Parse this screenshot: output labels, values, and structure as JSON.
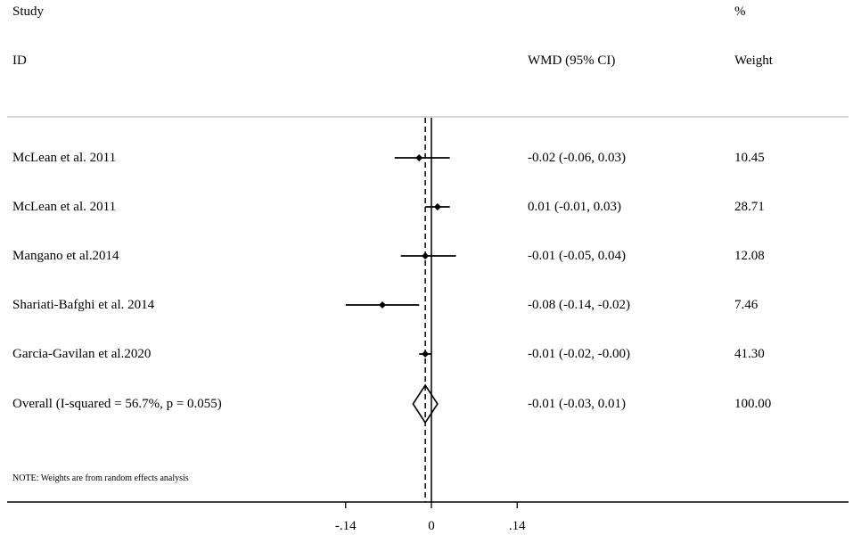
{
  "header": {
    "study_label": "Study",
    "id_label": "ID",
    "effect_label": "WMD (95% CI)",
    "pct_label": "%",
    "weight_label": "Weight"
  },
  "note": "NOTE: Weights are from random effects analysis",
  "chart_data": {
    "type": "forest",
    "effect_measure": "WMD (95% CI)",
    "null_line": 0,
    "pooled_line": -0.01,
    "xlim": [
      -0.14,
      0.14
    ],
    "xticks": [
      -0.14,
      0,
      0.14
    ],
    "xtick_labels": [
      "-.14",
      "0",
      ".14"
    ],
    "studies": [
      {
        "id": "McLean et al. 2011",
        "est": -0.02,
        "lo": -0.06,
        "hi": 0.03,
        "ci_text": "-0.02 (-0.06, 0.03)",
        "weight": "10.45"
      },
      {
        "id": "McLean et al. 2011",
        "est": 0.01,
        "lo": -0.01,
        "hi": 0.03,
        "ci_text": "0.01 (-0.01, 0.03)",
        "weight": "28.71"
      },
      {
        "id": "Mangano et al.2014",
        "est": -0.01,
        "lo": -0.05,
        "hi": 0.04,
        "ci_text": "-0.01 (-0.05, 0.04)",
        "weight": "12.08"
      },
      {
        "id": "Shariati-Bafghi et al. 2014",
        "est": -0.08,
        "lo": -0.14,
        "hi": -0.02,
        "ci_text": "-0.08 (-0.14, -0.02)",
        "weight": "7.46"
      },
      {
        "id": "Garcia-Gavilan et al.2020",
        "est": -0.01,
        "lo": -0.02,
        "hi": -0.0,
        "ci_text": "-0.01 (-0.02, -0.00)",
        "weight": "41.30"
      }
    ],
    "overall": {
      "id": "Overall  (I-squared = 56.7%, p = 0.055)",
      "est": -0.01,
      "lo": -0.03,
      "hi": 0.01,
      "ci_text": "-0.01 (-0.03, 0.01)",
      "weight": "100.00"
    }
  }
}
